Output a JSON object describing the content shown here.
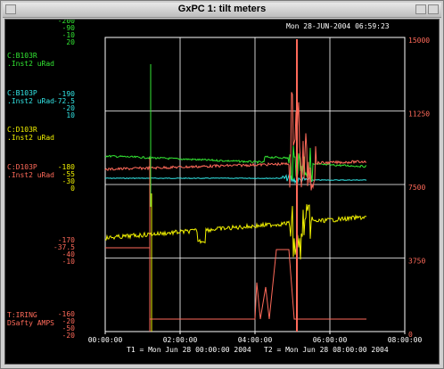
{
  "window": {
    "title": "GxPC 1: tilt meters"
  },
  "header": {
    "timestamp": "Mon 28-JUN-2004 06:59:23"
  },
  "colors": {
    "green": "#33e633",
    "cyan": "#33e6e6",
    "yellow": "#f0f000",
    "salmon": "#ff6a5a",
    "grid": "#ffffff"
  },
  "channels": [
    {
      "name": "C:B103R",
      "unit": ".Inst2  uRad",
      "color": "#33e633",
      "scale": [
        "-200",
        "-90",
        "-10",
        "20"
      ]
    },
    {
      "name": "C:B103P",
      "unit": ".Inst2  uRad",
      "color": "#33e6e6",
      "scale": [
        "-190",
        "-72.5",
        "-20",
        "10"
      ]
    },
    {
      "name": "C:D103R",
      "unit": ".Inst2  uRad",
      "color": "#f0f000",
      "scale": [
        "-180",
        "-55",
        "-30",
        "0"
      ]
    },
    {
      "name": "C:D103P",
      "unit": ".Inst2  uRad",
      "color": "#ff6a5a",
      "scale": [
        "-170",
        "-37.5",
        "-40",
        "-10"
      ]
    },
    {
      "name": "T:IRING",
      "unit": "DSafty AMPS",
      "color": "#ff6a5a",
      "scale": [
        "-160",
        "-20",
        "-50",
        "-20"
      ]
    }
  ],
  "right_axis": {
    "color": "#ff6a5a",
    "ticks": [
      "15000",
      "11250",
      "7500",
      "3750",
      "0"
    ]
  },
  "x_axis": {
    "ticks": [
      "00:00:00",
      "02:00:00",
      "04:00:00",
      "06:00:00",
      "08:00:00"
    ]
  },
  "footer": {
    "t1": "T1 = Mon Jun 28 00:00:00 2004",
    "t2": "T2 = Mon Jun 28 08:00:00 2004"
  }
}
